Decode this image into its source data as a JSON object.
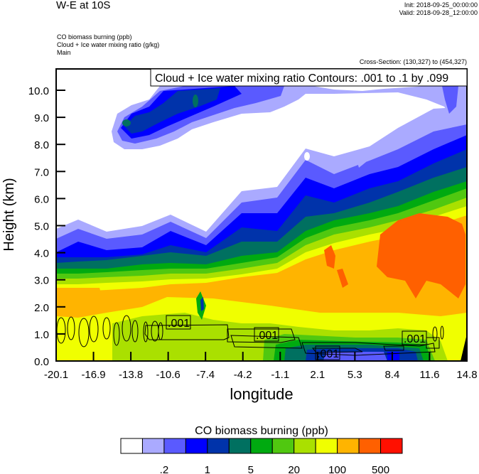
{
  "header": {
    "title": "W-E at 10S",
    "init": "Init: 2018-09-25_00:00:00",
    "valid": "Valid: 2018-09-28_12:00:00",
    "field1": "CO biomass burning   (ppb)",
    "field2": "Cloud + Ice water mixing ratio   (g/kg)",
    "domain": "Main",
    "cross_section": "Cross-Section: (130,327) to (454,327)"
  },
  "chart_data": {
    "type": "heatmap",
    "description_fields": [
      "CO biomass burning (filled contours)",
      "Cloud + Ice water mixing ratio (line contours)"
    ],
    "contour_legend": "Cloud + Ice water mixing ratio Contours: .001 to .1 by .099",
    "contour_labels": [
      ".001",
      ".001",
      ".001",
      ".001"
    ],
    "xlabel": "longitude",
    "ylabel": "Height (km)",
    "xlim": [
      -20.1,
      14.8
    ],
    "ylim": [
      0,
      10.8
    ],
    "xticks": [
      "-20.1",
      "-16.9",
      "-13.8",
      "-10.6",
      "-7.4",
      "-4.2",
      "-1.1",
      "2.1",
      "5.3",
      "8.4",
      "11.6",
      "14.8"
    ],
    "yticks": [
      "0.0",
      "1.0",
      "2.0",
      "3.0",
      "4.0",
      "5.0",
      "6.0",
      "7.0",
      "8.0",
      "9.0",
      "10.0"
    ],
    "colorbar": {
      "title": "CO biomass burning  (ppb)",
      "colors": [
        "#ffffff",
        "#aaaaff",
        "#5a5aff",
        "#0000ff",
        "#0033aa",
        "#007060",
        "#00aa10",
        "#50c810",
        "#aae000",
        "#f0ff00",
        "#ffb400",
        "#ff6000",
        "#ff1000"
      ],
      "labels": [
        ".2",
        "1",
        "5",
        "20",
        "100",
        "500"
      ]
    }
  }
}
